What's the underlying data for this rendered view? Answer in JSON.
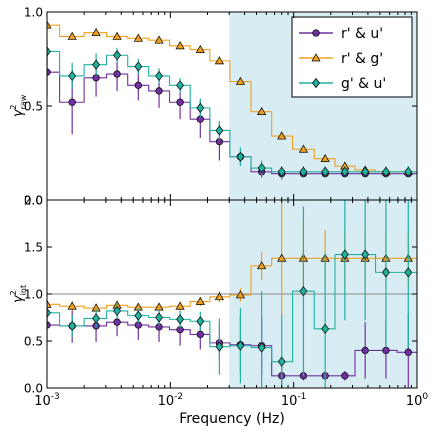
{
  "figure": {
    "xlabel": "Frequency (Hz)",
    "xticks": [
      {
        "base": "10",
        "exp": "-3",
        "value": 0.001
      },
      {
        "base": "10",
        "exp": "-2",
        "value": 0.01
      },
      {
        "base": "10",
        "exp": "-1",
        "value": 0.1
      },
      {
        "base": "10",
        "exp": "0",
        "value": 1
      }
    ],
    "highlight_from_hz": 0.03,
    "colors": {
      "ru": "#7030a0",
      "rg": "#f0a01e",
      "gu": "#20b2a0",
      "shade": "#d8ecf4"
    }
  },
  "legend": {
    "items": [
      {
        "label": "r' & u'",
        "color": "#7030a0",
        "marker": "circle"
      },
      {
        "label": "r' & g'",
        "color": "#f0a01e",
        "marker": "triangle"
      },
      {
        "label": "g' & u'",
        "color": "#20b2a0",
        "marker": "diamond"
      }
    ]
  },
  "chart_data": [
    {
      "type": "line",
      "panel": "top",
      "ylabel": "γ²raw",
      "ylabel_sym": "γ",
      "ylabel_sup": "2",
      "ylabel_sub": "raw",
      "ylim": [
        0,
        1.0
      ],
      "yticks": [
        "0.0",
        "0.5",
        "1.0"
      ],
      "x_scale": "log",
      "xlim": [
        0.001,
        1
      ],
      "x": [
        0.001,
        0.0016,
        0.0025,
        0.0037,
        0.0055,
        0.0081,
        0.012,
        0.0175,
        0.025,
        0.037,
        0.055,
        0.08,
        0.12,
        0.18,
        0.26,
        0.38,
        0.56,
        0.85
      ],
      "series": [
        {
          "name": "r' & u'",
          "key": "ru",
          "values": [
            0.68,
            0.52,
            0.65,
            0.67,
            0.61,
            0.58,
            0.52,
            0.43,
            0.31,
            0.23,
            0.15,
            0.14,
            0.14,
            0.14,
            0.14,
            0.14,
            0.14,
            0.14
          ],
          "errors": [
            0.13,
            0.17,
            0.1,
            0.09,
            0.08,
            0.09,
            0.09,
            0.1,
            0.1,
            0.04,
            0.03,
            0.03,
            0.02,
            0.02,
            0.02,
            0.02,
            0.02,
            0.02
          ]
        },
        {
          "name": "r' & g'",
          "key": "rg",
          "values": [
            0.93,
            0.87,
            0.89,
            0.87,
            0.86,
            0.85,
            0.82,
            0.8,
            0.74,
            0.63,
            0.47,
            0.34,
            0.27,
            0.22,
            0.18,
            0.16,
            0.15,
            0.15
          ],
          "errors": [
            0.02,
            0.02,
            0.02,
            0.02,
            0.02,
            0.02,
            0.02,
            0.02,
            0.02,
            0.02,
            0.02,
            0.02,
            0.02,
            0.02,
            0.02,
            0.02,
            0.02,
            0.02
          ]
        },
        {
          "name": "g' & u'",
          "key": "gu",
          "values": [
            0.79,
            0.66,
            0.72,
            0.77,
            0.71,
            0.66,
            0.61,
            0.49,
            0.37,
            0.23,
            0.17,
            0.15,
            0.15,
            0.15,
            0.15,
            0.15,
            0.15,
            0.15
          ],
          "errors": [
            0.07,
            0.07,
            0.06,
            0.04,
            0.04,
            0.04,
            0.04,
            0.05,
            0.05,
            0.05,
            0.04,
            0.03,
            0.03,
            0.03,
            0.03,
            0.03,
            0.03,
            0.03
          ]
        }
      ]
    },
    {
      "type": "line",
      "panel": "bottom",
      "ylabel": "γ²int",
      "ylabel_sym": "γ",
      "ylabel_sup": "2",
      "ylabel_sub": "int",
      "ylim": [
        0,
        2.0
      ],
      "yticks": [
        "0.0",
        "0.5",
        "1.0",
        "1.5",
        "2.0"
      ],
      "reference_line": 1.0,
      "x_scale": "log",
      "xlim": [
        0.001,
        1
      ],
      "x": [
        0.001,
        0.0016,
        0.0025,
        0.0037,
        0.0055,
        0.0081,
        0.012,
        0.0175,
        0.025,
        0.037,
        0.055,
        0.08,
        0.12,
        0.18,
        0.26,
        0.38,
        0.56,
        0.85
      ],
      "series": [
        {
          "name": "r' & u'",
          "key": "ru",
          "values": [
            0.67,
            0.66,
            0.66,
            0.7,
            0.67,
            0.65,
            0.62,
            0.57,
            0.48,
            0.46,
            0.45,
            0.13,
            0.13,
            0.13,
            0.13,
            0.4,
            0.4,
            0.38
          ],
          "errors": [
            0.16,
            0.18,
            0.17,
            0.15,
            0.16,
            0.16,
            0.17,
            0.16,
            0.2,
            0.3,
            0.3,
            0.1,
            0.05,
            0.05,
            0.05,
            0.3,
            0.3,
            0.4
          ]
        },
        {
          "name": "r' & g'",
          "key": "rg",
          "values": [
            0.89,
            0.87,
            0.85,
            0.88,
            0.86,
            0.86,
            0.87,
            0.92,
            0.97,
            0.99,
            1.3,
            1.38,
            1.38,
            1.38,
            1.38,
            1.38,
            1.38,
            1.38
          ],
          "errors": [
            0.04,
            0.05,
            0.05,
            0.05,
            0.04,
            0.05,
            0.05,
            0.05,
            0.06,
            0.07,
            0.15,
            0.6,
            0.4,
            0.3,
            0.3,
            0.3,
            0.3,
            0.3
          ]
        },
        {
          "name": "g' & u'",
          "key": "gu",
          "values": [
            0.8,
            0.66,
            0.74,
            0.82,
            0.77,
            0.75,
            0.73,
            0.71,
            0.44,
            0.45,
            0.43,
            0.28,
            1.03,
            0.63,
            1.42,
            1.42,
            1.23,
            1.23
          ],
          "errors": [
            0.1,
            0.12,
            0.1,
            0.08,
            0.08,
            0.08,
            0.09,
            0.1,
            0.3,
            0.4,
            0.6,
            0.5,
            0.9,
            0.8,
            0.7,
            0.7,
            0.8,
            0.8
          ]
        }
      ]
    }
  ]
}
